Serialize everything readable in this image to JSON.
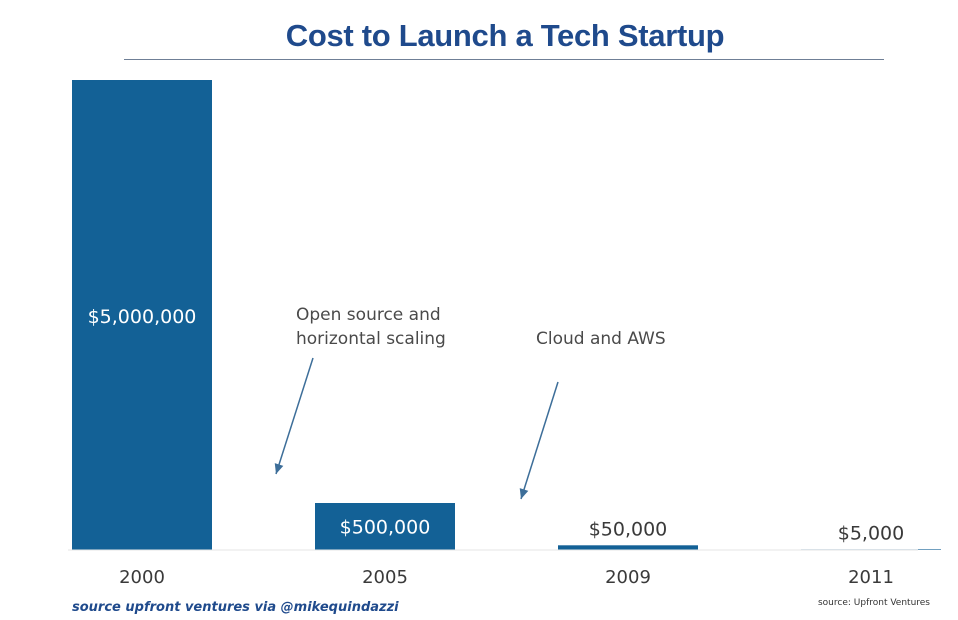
{
  "chart_data": {
    "type": "bar",
    "title": "Cost to Launch a Tech Startup",
    "categories": [
      "2000",
      "2005",
      "2009",
      "2011"
    ],
    "values": [
      5000000,
      500000,
      50000,
      5000
    ],
    "data_labels": [
      "$5,000,000",
      "$500,000",
      "$50,000",
      "$5,000"
    ],
    "ylim": [
      0,
      5000000
    ],
    "grid": false,
    "annotations": [
      {
        "lines": [
          "Open source and",
          "horizontal scaling"
        ]
      },
      {
        "lines": [
          "Cloud and AWS"
        ]
      }
    ],
    "colors": {
      "bar": "#136196",
      "label_inside": "#ffffff",
      "label_outside": "#3a3a3a",
      "title": "#1f4a8c"
    }
  },
  "footer": {
    "left": "source upfront ventures via @mikequindazzi",
    "right": "source: Upfront Ventures"
  }
}
